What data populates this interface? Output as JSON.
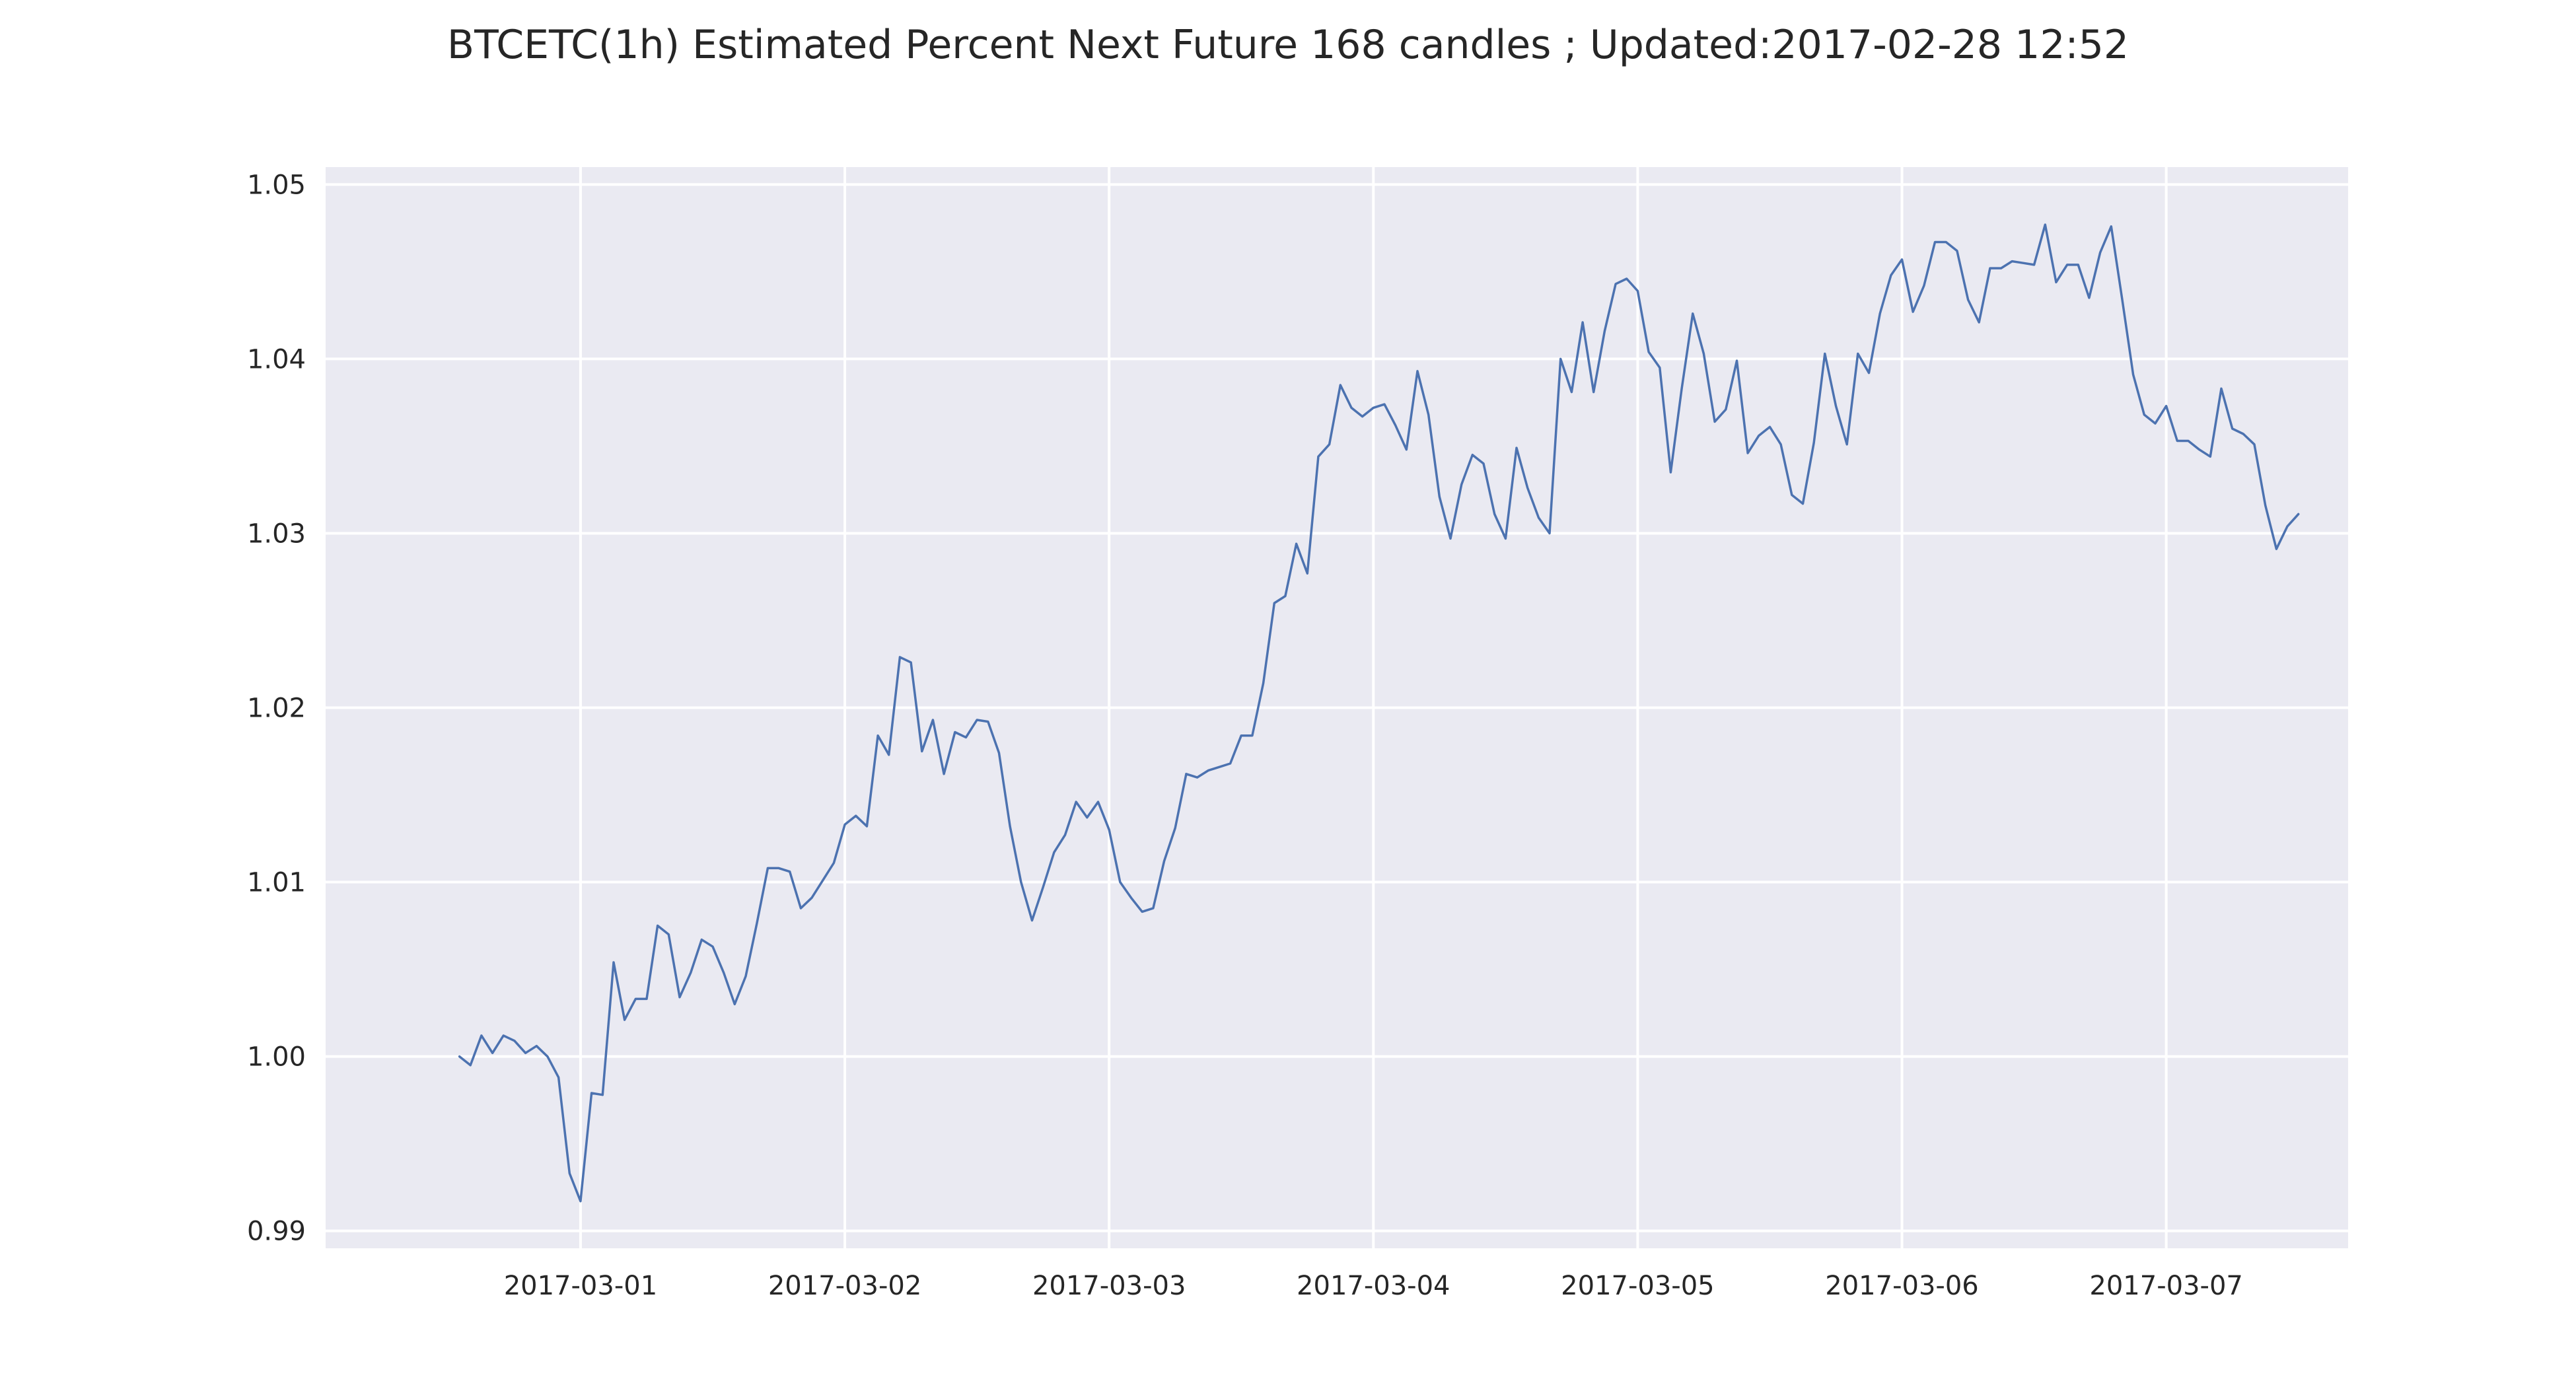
{
  "chart_data": {
    "type": "line",
    "title": "BTCETC(1h) Estimated Percent Next Future 168 candles ; Updated:2017-02-28 12:52",
    "xlabel": "",
    "ylabel": "",
    "ylim": [
      0.989,
      1.051
    ],
    "xlim": [
      "2017-02-28 00:51",
      "2017-03-07 16:31"
    ],
    "grid": true,
    "x_ticks": [
      "2017-03-01",
      "2017-03-02",
      "2017-03-03",
      "2017-03-04",
      "2017-03-05",
      "2017-03-06",
      "2017-03-07"
    ],
    "y_ticks": [
      0.99,
      1.0,
      1.01,
      1.02,
      1.03,
      1.04,
      1.05
    ],
    "y_tick_labels": [
      "0.99",
      "1.00",
      "1.01",
      "1.02",
      "1.03",
      "1.04",
      "1.05"
    ],
    "colors": {
      "background": "#eaeaf2",
      "grid": "#ffffff",
      "line": "#4c72b0",
      "text": "#262626"
    },
    "series": [
      {
        "x_start": "2017-02-28 13:00",
        "x_step_hours": 1,
        "values": [
          1.0,
          0.9995,
          1.0012,
          1.0002,
          1.0012,
          1.0009,
          1.0002,
          1.0006,
          1.0,
          0.9988,
          0.9933,
          0.9917,
          0.9979,
          0.9978,
          1.0054,
          1.0021,
          1.0033,
          1.0033,
          1.0075,
          1.007,
          1.0034,
          1.0048,
          1.0067,
          1.0063,
          1.0048,
          1.003,
          1.0046,
          1.0076,
          1.0108,
          1.0108,
          1.0106,
          1.0085,
          1.0091,
          1.0101,
          1.0111,
          1.0133,
          1.0138,
          1.0132,
          1.0184,
          1.0173,
          1.0229,
          1.0226,
          1.0175,
          1.0193,
          1.0162,
          1.0186,
          1.0183,
          1.0193,
          1.0192,
          1.0174,
          1.0132,
          1.01,
          1.0078,
          1.0097,
          1.0117,
          1.0127,
          1.0146,
          1.0137,
          1.0146,
          1.013,
          1.01,
          1.0091,
          1.0083,
          1.0085,
          1.0112,
          1.0131,
          1.0162,
          1.016,
          1.0164,
          1.0166,
          1.0168,
          1.0184,
          1.0184,
          1.0214,
          1.026,
          1.0264,
          1.0294,
          1.0277,
          1.0344,
          1.0351,
          1.0385,
          1.0372,
          1.0367,
          1.0372,
          1.0374,
          1.0362,
          1.0348,
          1.0393,
          1.0368,
          1.0321,
          1.0297,
          1.0328,
          1.0345,
          1.034,
          1.0311,
          1.0297,
          1.0349,
          1.0326,
          1.0309,
          1.03,
          1.04,
          1.0381,
          1.0421,
          1.0381,
          1.0416,
          1.0443,
          1.0446,
          1.0439,
          1.0404,
          1.0395,
          1.0335,
          1.0383,
          1.0426,
          1.0403,
          1.0364,
          1.0371,
          1.0399,
          1.0346,
          1.0356,
          1.0361,
          1.0351,
          1.0322,
          1.0317,
          1.0352,
          1.0403,
          1.0373,
          1.0351,
          1.0403,
          1.0392,
          1.0426,
          1.0448,
          1.0457,
          1.0427,
          1.0442,
          1.0467,
          1.0467,
          1.0462,
          1.0434,
          1.0421,
          1.0452,
          1.0452,
          1.0456,
          1.0455,
          1.0454,
          1.0477,
          1.0444,
          1.0454,
          1.0454,
          1.0435,
          1.0461,
          1.0476,
          1.0434,
          1.0391,
          1.0368,
          1.0363,
          1.0373,
          1.0353,
          1.0353,
          1.0348,
          1.0344,
          1.0383,
          1.036,
          1.0357,
          1.0351,
          1.0316,
          1.0291,
          1.0304,
          1.0311
        ]
      }
    ]
  }
}
